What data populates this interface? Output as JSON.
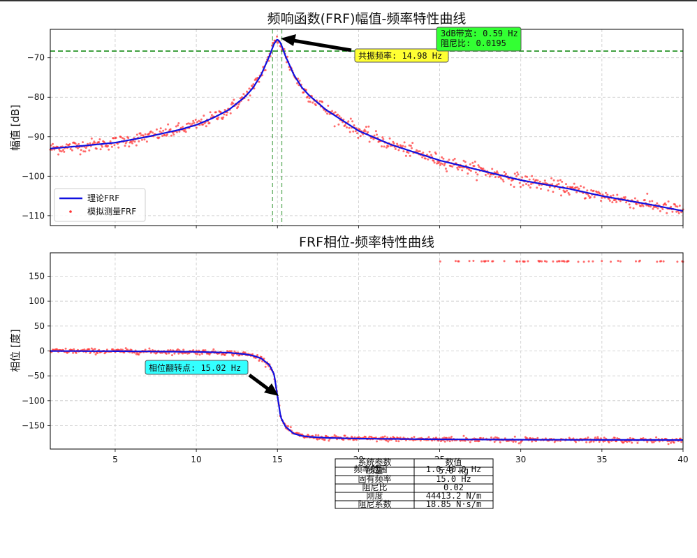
{
  "chart_data": [
    {
      "type": "line",
      "title": "频响函数(FRF)幅值-频率特性曲线",
      "xlabel": "",
      "ylabel": "幅值 [dB]",
      "xlim": [
        1,
        40
      ],
      "ylim": [
        -112.5,
        -62.8
      ],
      "xticks": [
        5,
        10,
        15,
        20,
        25,
        30,
        35,
        40
      ],
      "yticks": [
        -70,
        -80,
        -90,
        -100,
        -110
      ],
      "xtick_labels_visible": false,
      "grid": true,
      "legend_position": "lower-left",
      "series": [
        {
          "name": "理论FRF",
          "style": "line",
          "color": "#1010e0",
          "x": [
            1,
            3,
            5,
            7,
            9,
            10,
            11,
            12,
            13,
            13.5,
            14,
            14.5,
            14.8,
            15,
            15.2,
            15.5,
            16,
            16.5,
            17,
            18,
            20,
            22,
            25,
            28,
            30,
            33,
            35,
            38,
            40
          ],
          "y": [
            -93.0,
            -92.3,
            -91.5,
            -90.0,
            -88.2,
            -87.0,
            -85.3,
            -83.2,
            -79.9,
            -77.6,
            -74.3,
            -69.6,
            -66.4,
            -65.3,
            -66.3,
            -69.6,
            -74.2,
            -77.5,
            -79.7,
            -83.2,
            -88.5,
            -92.0,
            -96.0,
            -99.0,
            -101.0,
            -103.2,
            -105.0,
            -107.2,
            -108.8
          ]
        },
        {
          "name": "模拟测量FRF",
          "style": "scatter",
          "color": "#ff3030",
          "noise_db": 0.8
        }
      ],
      "annotations": [
        {
          "text": "共振频率: 14.98 Hz",
          "x": 14.98,
          "y": -65.3,
          "box_color": "#ffff33"
        },
        {
          "text": "3dB带宽: 0.59 Hz\n阻尼比: 0.0195",
          "box_color": "#33ff33"
        }
      ],
      "hline": {
        "y": -68.3,
        "color": "#008000",
        "style": "dashed"
      },
      "vlines": [
        {
          "x": 14.7,
          "color": "#3a9a3a"
        },
        {
          "x": 15.27,
          "color": "#3a9a3a"
        }
      ]
    },
    {
      "type": "line",
      "title": "FRF相位-频率特性曲线",
      "xlabel": "",
      "ylabel": "相位 [度]",
      "xlim": [
        1,
        40
      ],
      "ylim": [
        -197,
        197
      ],
      "xticks": [
        5,
        10,
        15,
        20,
        25,
        30,
        35,
        40
      ],
      "yticks": [
        150,
        100,
        50,
        0,
        -50,
        -100,
        -150
      ],
      "grid": true,
      "series": [
        {
          "name": "理论FRF",
          "style": "line",
          "color": "#1010e0",
          "x": [
            1,
            5,
            10,
            12,
            13,
            13.5,
            14,
            14.5,
            14.8,
            15,
            15.2,
            15.5,
            16,
            16.5,
            17,
            18,
            20,
            25,
            30,
            35,
            40
          ],
          "y": [
            -0.2,
            -0.5,
            -1.8,
            -3.5,
            -6.5,
            -9.5,
            -15.0,
            -28.0,
            -47.0,
            -90.0,
            -133.0,
            -152.0,
            -166.0,
            -170.5,
            -172.5,
            -174.5,
            -176.0,
            -177.5,
            -178.2,
            -178.6,
            -178.9
          ]
        },
        {
          "name": "模拟测量FRF",
          "style": "scatter",
          "color": "#ff3030",
          "noise_deg": 2.5,
          "wrap_region_x": [
            25,
            40
          ],
          "wrap_value": 180
        }
      ],
      "annotations": [
        {
          "text": "相位翻转点: 15.02 Hz",
          "x": 15.02,
          "y": -90,
          "box_color": "#33ffff"
        }
      ]
    }
  ],
  "table": {
    "header": [
      "系统参数",
      "数值"
    ],
    "rows": [
      [
        "质量",
        "5.0 kg"
      ],
      [
        "频率范围",
        "1.0-40.0 Hz"
      ],
      [
        "固有频率",
        "15.0 Hz"
      ],
      [
        "阻尼比",
        "0.02"
      ],
      [
        "刚度",
        "44413.2 N/m"
      ],
      [
        "阻尼系数",
        "18.85 N·s/m"
      ]
    ]
  }
}
